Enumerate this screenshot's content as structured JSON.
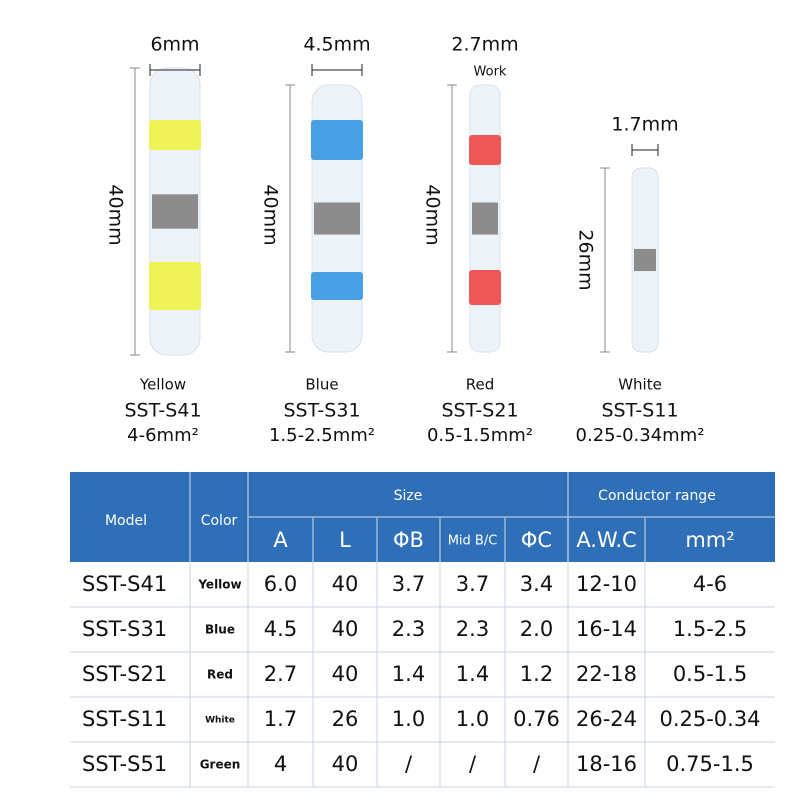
{
  "products": [
    {
      "width": "6mm",
      "length": "40mm",
      "color": "Yellow",
      "model": "SST-S41",
      "range": "4-6mm²"
    },
    {
      "width": "4.5mm",
      "length": "40mm",
      "color": "Blue",
      "model": "SST-S31",
      "range": "1.5-2.5mm²"
    },
    {
      "width": "2.7mm",
      "note": "Work",
      "length": "40mm",
      "color": "Red",
      "model": "SST-S21",
      "range": "0.5-1.5mm²"
    },
    {
      "width": "1.7mm",
      "length": "26mm",
      "color": "White",
      "model": "SST-S11",
      "range": "0.25-0.34mm²"
    }
  ],
  "table": {
    "header": {
      "model": "Model",
      "color": "Color",
      "size": "Size",
      "conductor": "Conductor range",
      "columns": [
        "A",
        "L",
        "ΦB",
        "Mid B/C",
        "ΦC",
        "A.W.C",
        "mm²"
      ]
    },
    "rows": [
      [
        "SST-S41",
        "Yellow",
        "6.0",
        "40",
        "3.7",
        "3.7",
        "3.4",
        "12-10",
        "4-6"
      ],
      [
        "SST-S31",
        "Blue",
        "4.5",
        "40",
        "2.3",
        "2.3",
        "2.0",
        "16-14",
        "1.5-2.5"
      ],
      [
        "SST-S21",
        "Red",
        "2.7",
        "40",
        "1.4",
        "1.4",
        "1.2",
        "22-18",
        "0.5-1.5"
      ],
      [
        "SST-S11",
        "White",
        "1.7",
        "26",
        "1.0",
        "1.0",
        "0.76",
        "26-24",
        "0.25-0.34"
      ],
      [
        "SST-S51",
        "Green",
        "4",
        "40",
        "/",
        "/",
        "/",
        "18-16",
        "0.75-1.5"
      ]
    ]
  }
}
